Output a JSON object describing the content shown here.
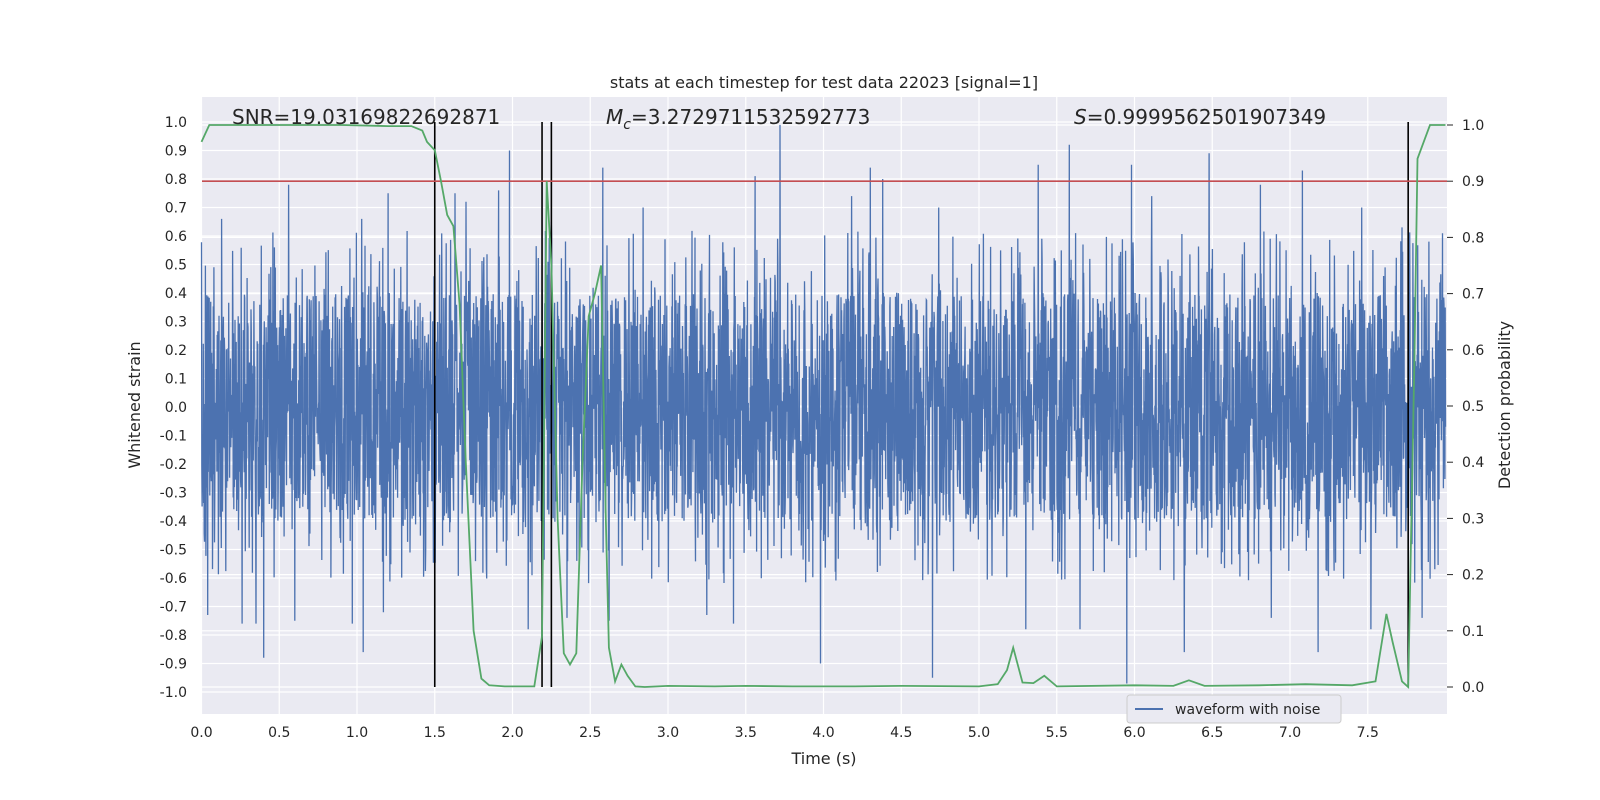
{
  "chart_data": {
    "type": "line",
    "title": "stats at each timestep for test data 22023 [signal=1]",
    "xlabel": "Time (s)",
    "ylabel": "Whitened strain",
    "y2label": "Detection probability",
    "xlim": [
      0.0,
      8.0
    ],
    "ylim": [
      -1.08,
      1.1
    ],
    "y2lim": [
      -0.047,
      1.0
    ],
    "x_ticks": [
      0.0,
      0.5,
      1.0,
      1.5,
      2.0,
      2.5,
      3.0,
      3.5,
      4.0,
      4.5,
      5.0,
      5.5,
      6.0,
      6.5,
      7.0,
      7.5
    ],
    "x_tick_labels": [
      "0.0",
      "0.5",
      "1.0",
      "1.5",
      "2.0",
      "2.5",
      "3.0",
      "3.5",
      "4.0",
      "4.5",
      "5.0",
      "5.5",
      "6.0",
      "6.5",
      "7.0",
      "7.5"
    ],
    "y_ticks": [
      1.0,
      0.9,
      0.8,
      0.7,
      0.6,
      0.5,
      0.4,
      0.3,
      0.2,
      0.1,
      0.0,
      -0.1,
      -0.2,
      -0.3,
      -0.4,
      -0.5,
      -0.6,
      -0.7,
      -0.8,
      -0.9,
      -1.0
    ],
    "y_tick_labels": [
      "1.0",
      "0.9",
      "0.8",
      "0.7",
      "0.6",
      "0.5",
      "0.4",
      "0.3",
      "0.2",
      "0.1",
      "0.0",
      "-0.1",
      "-0.2",
      "-0.3",
      "-0.4",
      "-0.5",
      "-0.6",
      "-0.7",
      "-0.8",
      "-0.9",
      "-1.0"
    ],
    "y2_ticks": [
      1.0,
      0.9,
      0.8,
      0.7,
      0.6,
      0.5,
      0.4,
      0.3,
      0.2,
      0.1,
      0.0
    ],
    "y2_tick_labels": [
      "1.0",
      "0.9",
      "0.8",
      "0.7",
      "0.6",
      "0.5",
      "0.4",
      "0.3",
      "0.2",
      "0.1",
      "0.0"
    ],
    "threshold": {
      "axis": "y2",
      "value": 0.9,
      "color": "#c44e52"
    },
    "vertical_lines": [
      1.5,
      2.19,
      2.25,
      7.76
    ],
    "annotations": {
      "snr": "SNR=19.03169822692871",
      "mc_symbol": "M",
      "mc_sub": "c",
      "mc_value": "=3.2729711532592773",
      "s_symbol": "S",
      "s_value": "=0.9999562501907349"
    },
    "legend": {
      "label": "waveform with noise",
      "location": "lower-right"
    },
    "series": [
      {
        "name": "waveform with noise",
        "axis": "y",
        "color": "#4c72b0",
        "note": "dense noisy strain; core band approx -0.38..0.40 with spikes to about +/-0.95",
        "spikes": [
          [
            0.04,
            -0.73
          ],
          [
            0.13,
            0.66
          ],
          [
            0.26,
            -0.76
          ],
          [
            0.35,
            -0.76
          ],
          [
            0.4,
            0.84
          ],
          [
            0.4,
            -0.88
          ],
          [
            0.56,
            0.78
          ],
          [
            0.6,
            -0.75
          ],
          [
            0.97,
            -0.76
          ],
          [
            1.03,
            0.66
          ],
          [
            1.04,
            -0.86
          ],
          [
            1.17,
            -0.72
          ],
          [
            1.2,
            0.75
          ],
          [
            1.63,
            0.75
          ],
          [
            1.7,
            0.72
          ],
          [
            1.91,
            0.76
          ],
          [
            1.98,
            0.9
          ],
          [
            2.1,
            -0.78
          ],
          [
            2.25,
            0.65
          ],
          [
            2.35,
            -0.74
          ],
          [
            2.58,
            0.84
          ],
          [
            2.62,
            -0.75
          ],
          [
            2.84,
            0.7
          ],
          [
            3.25,
            -0.73
          ],
          [
            3.42,
            -0.76
          ],
          [
            3.56,
            0.81
          ],
          [
            3.72,
            0.99
          ],
          [
            3.98,
            -0.9
          ],
          [
            4.18,
            0.74
          ],
          [
            4.3,
            0.84
          ],
          [
            4.38,
            0.8
          ],
          [
            4.7,
            -0.95
          ],
          [
            4.74,
            0.7
          ],
          [
            5.3,
            -0.78
          ],
          [
            5.38,
            0.85
          ],
          [
            5.58,
            0.92
          ],
          [
            5.65,
            -0.78
          ],
          [
            5.95,
            -0.97
          ],
          [
            5.98,
            0.85
          ],
          [
            6.11,
            0.74
          ],
          [
            6.32,
            -0.86
          ],
          [
            6.48,
            0.89
          ],
          [
            6.81,
            0.78
          ],
          [
            6.88,
            -0.74
          ],
          [
            7.08,
            0.83
          ],
          [
            7.18,
            -0.86
          ],
          [
            7.46,
            0.7
          ],
          [
            7.52,
            -0.78
          ],
          [
            7.72,
            0.63
          ],
          [
            7.85,
            -0.74
          ],
          [
            7.98,
            0.61
          ]
        ]
      },
      {
        "name": "detection probability",
        "axis": "y2",
        "color": "#55a868",
        "x": [
          0.0,
          0.05,
          0.1,
          0.3,
          0.6,
          0.9,
          1.2,
          1.35,
          1.42,
          1.45,
          1.5,
          1.54,
          1.58,
          1.62,
          1.66,
          1.7,
          1.75,
          1.8,
          1.85,
          1.95,
          2.05,
          2.14,
          2.19,
          2.22,
          2.25,
          2.29,
          2.33,
          2.37,
          2.41,
          2.45,
          2.49,
          2.53,
          2.57,
          2.6,
          2.62,
          2.66,
          2.7,
          2.74,
          2.79,
          2.85,
          3.0,
          3.3,
          3.5,
          3.8,
          4.2,
          4.5,
          5.0,
          5.12,
          5.18,
          5.22,
          5.28,
          5.35,
          5.42,
          5.5,
          6.0,
          6.25,
          6.35,
          6.45,
          6.8,
          7.1,
          7.4,
          7.55,
          7.62,
          7.66,
          7.72,
          7.76,
          7.8,
          7.82,
          7.86,
          7.9,
          7.95,
          8.0
        ],
        "y": [
          0.97,
          1.0,
          1.0,
          1.0,
          1.0,
          1.0,
          0.998,
          0.998,
          0.99,
          0.97,
          0.955,
          0.9,
          0.84,
          0.82,
          0.68,
          0.4,
          0.1,
          0.015,
          0.003,
          0.001,
          0.001,
          0.001,
          0.09,
          0.9,
          0.75,
          0.3,
          0.06,
          0.04,
          0.06,
          0.4,
          0.66,
          0.7,
          0.75,
          0.3,
          0.07,
          0.01,
          0.04,
          0.02,
          0.001,
          0.0,
          0.002,
          0.001,
          0.002,
          0.001,
          0.001,
          0.002,
          0.001,
          0.005,
          0.03,
          0.07,
          0.008,
          0.007,
          0.02,
          0.001,
          0.003,
          0.002,
          0.012,
          0.002,
          0.003,
          0.005,
          0.003,
          0.01,
          0.13,
          0.08,
          0.01,
          0.0,
          0.58,
          0.94,
          0.97,
          1.0,
          1.0,
          1.0
        ]
      }
    ]
  }
}
